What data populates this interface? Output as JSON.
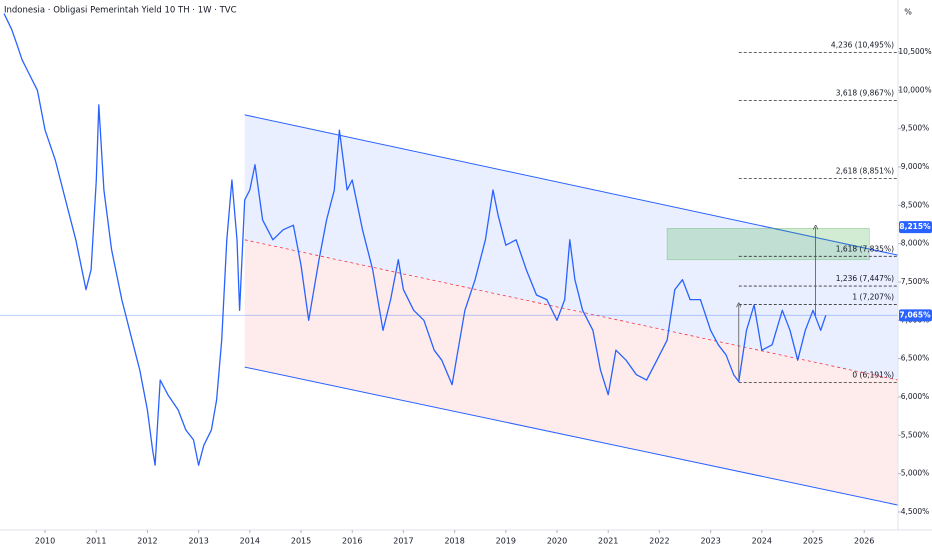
{
  "chart_data": {
    "type": "line",
    "title": "Indonesia · Obligasi Pemerintah Yield 10 TH · 1W · TVC",
    "unit_label": "%",
    "xlim": [
      2009.12,
      2026.66
    ],
    "ylim": [
      4.265,
      11.178
    ],
    "xticks": [
      2010,
      2011,
      2012,
      2013,
      2014,
      2015,
      2016,
      2017,
      2018,
      2019,
      2020,
      2021,
      2022,
      2023,
      2024,
      2025,
      2026
    ],
    "yticks": [
      {
        "value": 4.5,
        "label": "4,500%"
      },
      {
        "value": 5.0,
        "label": "5,000%"
      },
      {
        "value": 5.5,
        "label": "5,500%"
      },
      {
        "value": 6.0,
        "label": "6,000%"
      },
      {
        "value": 6.5,
        "label": "6,500%"
      },
      {
        "value": 7.0,
        "label": "7,000%"
      },
      {
        "value": 7.5,
        "label": "7,500%"
      },
      {
        "value": 8.0,
        "label": "8,000%"
      },
      {
        "value": 8.5,
        "label": "8,500%"
      },
      {
        "value": 9.0,
        "label": "9,000%"
      },
      {
        "value": 9.5,
        "label": "9,500%"
      },
      {
        "value": 10.0,
        "label": "10,000%"
      },
      {
        "value": 10.5,
        "label": "10,500%"
      }
    ],
    "series": [
      {
        "color": "#2962ff",
        "x": [
          2009.2,
          2009.35,
          2009.45,
          2009.55,
          2009.7,
          2009.85,
          2010.0,
          2010.2,
          2010.4,
          2010.6,
          2010.8,
          2010.9,
          2011.0,
          2011.05,
          2011.15,
          2011.3,
          2011.5,
          2011.7,
          2011.85,
          2012.0,
          2012.1,
          2012.15,
          2012.25,
          2012.4,
          2012.6,
          2012.75,
          2012.9,
          2013.0,
          2013.1,
          2013.25,
          2013.35,
          2013.45,
          2013.55,
          2013.65,
          2013.75,
          2013.8,
          2013.9,
          2014.0,
          2014.1,
          2014.25,
          2014.45,
          2014.65,
          2014.85,
          2015.0,
          2015.15,
          2015.35,
          2015.5,
          2015.65,
          2015.75,
          2015.9,
          2016.0,
          2016.2,
          2016.4,
          2016.6,
          2016.75,
          2016.9,
          2017.0,
          2017.2,
          2017.4,
          2017.6,
          2017.75,
          2017.95,
          2018.05,
          2018.2,
          2018.4,
          2018.6,
          2018.75,
          2018.85,
          2019.0,
          2019.2,
          2019.4,
          2019.6,
          2019.8,
          2020.0,
          2020.15,
          2020.25,
          2020.35,
          2020.5,
          2020.7,
          2020.85,
          2021.0,
          2021.15,
          2021.35,
          2021.55,
          2021.75,
          2021.95,
          2022.15,
          2022.3,
          2022.45,
          2022.6,
          2022.8,
          2023.0,
          2023.15,
          2023.3,
          2023.45,
          2023.55,
          2023.7,
          2023.85,
          2024.0,
          2024.2,
          2024.4,
          2024.55,
          2024.7,
          2024.85,
          2025.0,
          2025.15,
          2025.25
        ],
        "values": [
          11.0,
          10.79,
          10.6,
          10.4,
          10.2,
          10.0,
          9.48,
          9.09,
          8.57,
          8.05,
          7.4,
          7.66,
          8.83,
          9.81,
          8.7,
          7.92,
          7.27,
          6.74,
          6.35,
          5.83,
          5.31,
          5.11,
          6.22,
          6.03,
          5.83,
          5.57,
          5.44,
          5.11,
          5.37,
          5.57,
          5.96,
          6.74,
          8.05,
          8.83,
          8.05,
          7.13,
          8.57,
          8.7,
          9.03,
          8.31,
          8.05,
          8.18,
          8.24,
          7.72,
          7.0,
          7.79,
          8.31,
          8.7,
          9.48,
          8.7,
          8.83,
          8.18,
          7.66,
          6.87,
          7.27,
          7.79,
          7.4,
          7.13,
          7.0,
          6.61,
          6.48,
          6.16,
          6.55,
          7.13,
          7.53,
          8.05,
          8.7,
          8.37,
          7.98,
          8.05,
          7.66,
          7.33,
          7.27,
          7.0,
          7.27,
          8.05,
          7.53,
          7.13,
          6.87,
          6.35,
          6.03,
          6.61,
          6.48,
          6.29,
          6.22,
          6.48,
          6.74,
          7.4,
          7.53,
          7.27,
          7.27,
          6.87,
          6.68,
          6.55,
          6.29,
          6.2,
          6.87,
          7.2,
          6.61,
          6.68,
          7.13,
          6.87,
          6.48,
          6.87,
          7.13,
          6.87,
          7.065
        ]
      }
    ],
    "current_price": {
      "value": 7.065,
      "label": "7,065%"
    },
    "target_price": {
      "value": 8.215,
      "label": "8,215%"
    },
    "channel": {
      "x": [
        2013.9,
        2026.66
      ],
      "upper": [
        9.68,
        7.85
      ],
      "middle": [
        8.05,
        6.22
      ],
      "lower": [
        6.39,
        4.59
      ]
    },
    "fib_x": [
      2023.55,
      2026.66
    ],
    "fib_levels": [
      {
        "value": 6.191,
        "label": "0 (6,191%)"
      },
      {
        "value": 7.207,
        "label": "1 (7,207%)"
      },
      {
        "value": 7.447,
        "label": "1,236 (7,447%)"
      },
      {
        "value": 7.835,
        "label": "1,618 (7,835%)"
      },
      {
        "value": 8.851,
        "label": "2,618 (8,851%)"
      },
      {
        "value": 9.867,
        "label": "3,618 (9,867%)"
      },
      {
        "value": 10.495,
        "label": "4,236 (10,495%)"
      }
    ],
    "target_zone": {
      "x": [
        2022.15,
        2026.1
      ],
      "y": [
        7.79,
        8.2
      ]
    },
    "arrows": [
      {
        "x": 2023.55,
        "from": 6.2,
        "to": 7.2
      },
      {
        "x": 2025.05,
        "from": 7.065,
        "to": 8.215
      }
    ]
  }
}
